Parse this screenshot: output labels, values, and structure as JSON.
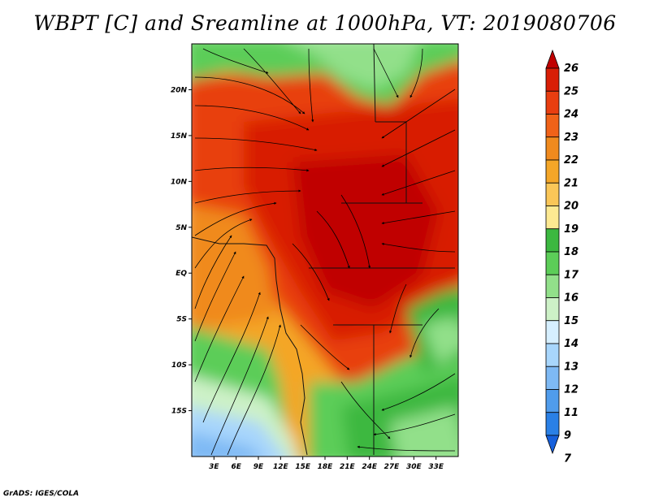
{
  "title": "WBPT [C] and Sreamline at 1000hPa, VT: 2019080706",
  "footer": "GrADS: IGES/COLA",
  "map": {
    "lon_range": [
      0,
      36
    ],
    "lat_range": [
      -20,
      25
    ],
    "lat_ticks": [
      {
        "value": 20,
        "label": "20N"
      },
      {
        "value": 15,
        "label": "15N"
      },
      {
        "value": 10,
        "label": "10N"
      },
      {
        "value": 5,
        "label": "5N"
      },
      {
        "value": 0,
        "label": "EQ"
      },
      {
        "value": -5,
        "label": "5S"
      },
      {
        "value": -10,
        "label": "10S"
      },
      {
        "value": -15,
        "label": "15S"
      }
    ],
    "lon_ticks": [
      {
        "value": 3,
        "label": "3E"
      },
      {
        "value": 6,
        "label": "6E"
      },
      {
        "value": 9,
        "label": "9E"
      },
      {
        "value": 12,
        "label": "12E"
      },
      {
        "value": 15,
        "label": "15E"
      },
      {
        "value": 18,
        "label": "18E"
      },
      {
        "value": 21,
        "label": "21E"
      },
      {
        "value": 24,
        "label": "24E"
      },
      {
        "value": 27,
        "label": "27E"
      },
      {
        "value": 30,
        "label": "30E"
      },
      {
        "value": 33,
        "label": "33E"
      }
    ]
  },
  "colorbar": {
    "labels": [
      "26",
      "25",
      "24",
      "23",
      "22",
      "21",
      "20",
      "19",
      "18",
      "17",
      "16",
      "15",
      "14",
      "13",
      "12",
      "11",
      "9",
      "7"
    ],
    "colors": [
      "#c00000",
      "#d81e06",
      "#e83e10",
      "#f06218",
      "#f08a1e",
      "#f4a628",
      "#fac658",
      "#fde992",
      "#3cb840",
      "#5ccd58",
      "#92e08a",
      "#cdf1c7",
      "#d6efff",
      "#a8d6fc",
      "#7eb9f4",
      "#509cec",
      "#2a80e6",
      "#1660dc"
    ]
  }
}
